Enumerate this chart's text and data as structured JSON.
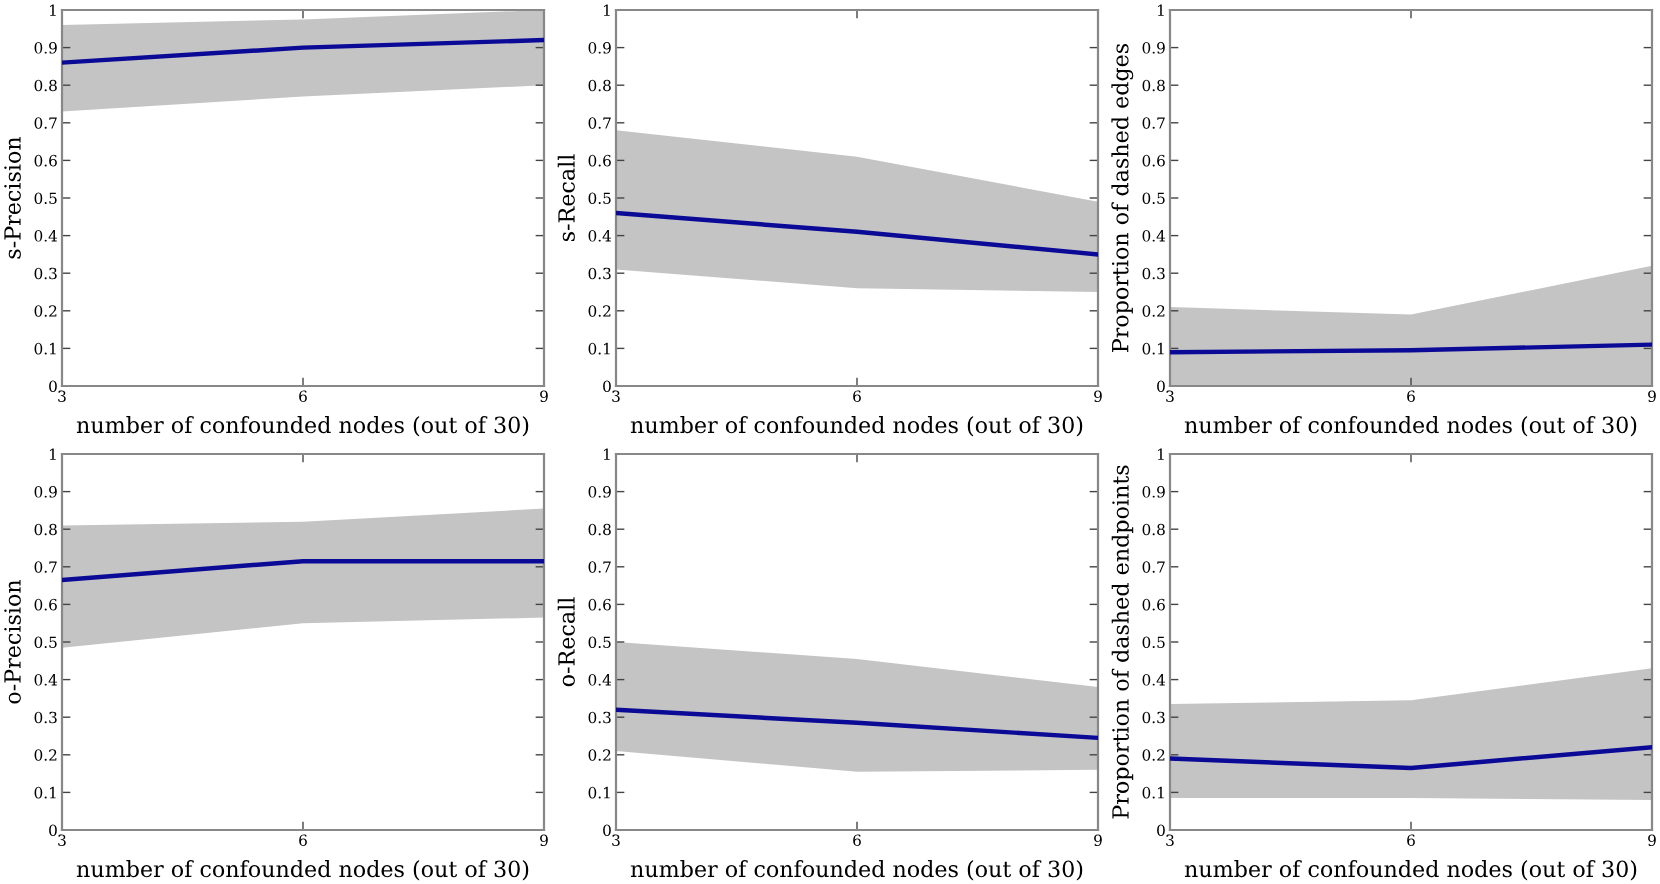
{
  "chart_data": [
    {
      "type": "line",
      "xlabel": "number of confounded nodes (out of 30)",
      "ylabel": "s-Precision",
      "x": [
        3,
        6,
        9
      ],
      "xlim": [
        3,
        9
      ],
      "ylim": [
        0,
        1
      ],
      "xticks": [
        3,
        6,
        9
      ],
      "yticks": [
        0,
        0.1,
        0.2,
        0.3,
        0.4,
        0.5,
        0.6,
        0.7,
        0.8,
        0.9,
        1
      ],
      "grid": false,
      "series": [
        {
          "color": "#0a0a96",
          "values": [
            0.86,
            0.9,
            0.92
          ],
          "lower": [
            0.73,
            0.77,
            0.8
          ],
          "upper": [
            0.96,
            0.975,
            1.0
          ]
        }
      ]
    },
    {
      "type": "line",
      "xlabel": "number of confounded nodes (out of 30)",
      "ylabel": "s-Recall",
      "x": [
        3,
        6,
        9
      ],
      "xlim": [
        3,
        9
      ],
      "ylim": [
        0,
        1
      ],
      "xticks": [
        3,
        6,
        9
      ],
      "yticks": [
        0,
        0.1,
        0.2,
        0.3,
        0.4,
        0.5,
        0.6,
        0.7,
        0.8,
        0.9,
        1
      ],
      "grid": false,
      "series": [
        {
          "color": "#0a0a96",
          "values": [
            0.46,
            0.41,
            0.35
          ],
          "lower": [
            0.31,
            0.26,
            0.25
          ],
          "upper": [
            0.68,
            0.61,
            0.49
          ]
        }
      ]
    },
    {
      "type": "line",
      "xlabel": "number of confounded nodes (out of 30)",
      "ylabel": "Proportion of dashed edges",
      "x": [
        3,
        6,
        9
      ],
      "xlim": [
        3,
        9
      ],
      "ylim": [
        0,
        1
      ],
      "xticks": [
        3,
        6,
        9
      ],
      "yticks": [
        0,
        0.1,
        0.2,
        0.3,
        0.4,
        0.5,
        0.6,
        0.7,
        0.8,
        0.9,
        1
      ],
      "grid": false,
      "series": [
        {
          "color": "#0a0a96",
          "values": [
            0.09,
            0.095,
            0.11
          ],
          "lower": [
            0,
            0,
            0
          ],
          "upper": [
            0.21,
            0.19,
            0.32
          ]
        }
      ]
    },
    {
      "type": "line",
      "xlabel": "number of confounded nodes (out of 30)",
      "ylabel": "o-Precision",
      "x": [
        3,
        6,
        9
      ],
      "xlim": [
        3,
        9
      ],
      "ylim": [
        0,
        1
      ],
      "xticks": [
        3,
        6,
        9
      ],
      "yticks": [
        0,
        0.1,
        0.2,
        0.3,
        0.4,
        0.5,
        0.6,
        0.7,
        0.8,
        0.9,
        1
      ],
      "grid": false,
      "series": [
        {
          "color": "#0a0a96",
          "values": [
            0.665,
            0.715,
            0.715
          ],
          "lower": [
            0.485,
            0.55,
            0.565
          ],
          "upper": [
            0.81,
            0.82,
            0.855
          ]
        }
      ]
    },
    {
      "type": "line",
      "xlabel": "number of confounded nodes (out of 30)",
      "ylabel": "o-Recall",
      "x": [
        3,
        6,
        9
      ],
      "xlim": [
        3,
        9
      ],
      "ylim": [
        0,
        1
      ],
      "xticks": [
        3,
        6,
        9
      ],
      "yticks": [
        0,
        0.1,
        0.2,
        0.3,
        0.4,
        0.5,
        0.6,
        0.7,
        0.8,
        0.9,
        1
      ],
      "grid": false,
      "series": [
        {
          "color": "#0a0a96",
          "values": [
            0.32,
            0.285,
            0.245
          ],
          "lower": [
            0.21,
            0.155,
            0.16
          ],
          "upper": [
            0.5,
            0.455,
            0.38
          ]
        }
      ]
    },
    {
      "type": "line",
      "xlabel": "number of confounded nodes (out of 30)",
      "ylabel": "Proportion of dashed endpoints",
      "x": [
        3,
        6,
        9
      ],
      "xlim": [
        3,
        9
      ],
      "ylim": [
        0,
        1
      ],
      "xticks": [
        3,
        6,
        9
      ],
      "yticks": [
        0,
        0.1,
        0.2,
        0.3,
        0.4,
        0.5,
        0.6,
        0.7,
        0.8,
        0.9,
        1
      ],
      "grid": false,
      "series": [
        {
          "color": "#0a0a96",
          "values": [
            0.19,
            0.165,
            0.22
          ],
          "lower": [
            0.085,
            0.085,
            0.08
          ],
          "upper": [
            0.335,
            0.345,
            0.43
          ]
        }
      ]
    }
  ]
}
